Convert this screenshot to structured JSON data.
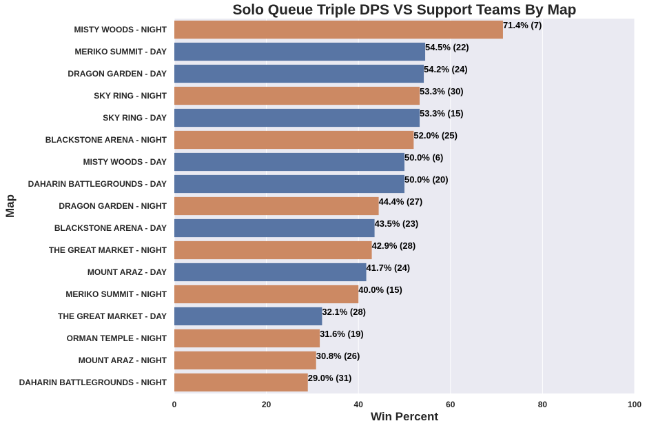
{
  "chart_data": {
    "type": "bar",
    "orientation": "horizontal",
    "title": "Solo Queue Triple DPS VS Support Teams By Map",
    "xlabel": "Win Percent",
    "ylabel": "Map",
    "xlim": [
      0,
      100
    ],
    "xticks": [
      0,
      20,
      40,
      60,
      80,
      100
    ],
    "grid": "vertical",
    "colors": {
      "day": "#5875a4",
      "night": "#cc8963",
      "plot_background": "#eaeaf2",
      "grid": "#ffffff",
      "text": "#262626",
      "label_text": "#000000"
    },
    "bars": [
      {
        "category": "MISTY WOODS - NIGHT",
        "value": 71.4,
        "label": "71.4% (7)",
        "group": "night"
      },
      {
        "category": "MERIKO SUMMIT - DAY",
        "value": 54.5,
        "label": "54.5% (22)",
        "group": "day"
      },
      {
        "category": "DRAGON GARDEN - DAY",
        "value": 54.2,
        "label": "54.2% (24)",
        "group": "day"
      },
      {
        "category": "SKY RING - NIGHT",
        "value": 53.3,
        "label": "53.3% (30)",
        "group": "night"
      },
      {
        "category": "SKY RING - DAY",
        "value": 53.3,
        "label": "53.3% (15)",
        "group": "day"
      },
      {
        "category": "BLACKSTONE ARENA - NIGHT",
        "value": 52.0,
        "label": "52.0% (25)",
        "group": "night"
      },
      {
        "category": "MISTY WOODS - DAY",
        "value": 50.0,
        "label": "50.0% (6)",
        "group": "day"
      },
      {
        "category": "DAHARIN BATTLEGROUNDS - DAY",
        "value": 50.0,
        "label": "50.0% (20)",
        "group": "day"
      },
      {
        "category": "DRAGON GARDEN - NIGHT",
        "value": 44.4,
        "label": "44.4% (27)",
        "group": "night"
      },
      {
        "category": "BLACKSTONE ARENA - DAY",
        "value": 43.5,
        "label": "43.5% (23)",
        "group": "day"
      },
      {
        "category": "THE GREAT MARKET - NIGHT",
        "value": 42.9,
        "label": "42.9% (28)",
        "group": "night"
      },
      {
        "category": "MOUNT ARAZ - DAY",
        "value": 41.7,
        "label": "41.7% (24)",
        "group": "day"
      },
      {
        "category": "MERIKO SUMMIT - NIGHT",
        "value": 40.0,
        "label": "40.0% (15)",
        "group": "night"
      },
      {
        "category": "THE GREAT MARKET - DAY",
        "value": 32.1,
        "label": "32.1% (28)",
        "group": "day"
      },
      {
        "category": "ORMAN TEMPLE - NIGHT",
        "value": 31.6,
        "label": "31.6% (19)",
        "group": "night"
      },
      {
        "category": "MOUNT ARAZ - NIGHT",
        "value": 30.8,
        "label": "30.8% (26)",
        "group": "night"
      },
      {
        "category": "DAHARIN BATTLEGROUNDS - NIGHT",
        "value": 29.0,
        "label": "29.0% (31)",
        "group": "night"
      }
    ]
  }
}
